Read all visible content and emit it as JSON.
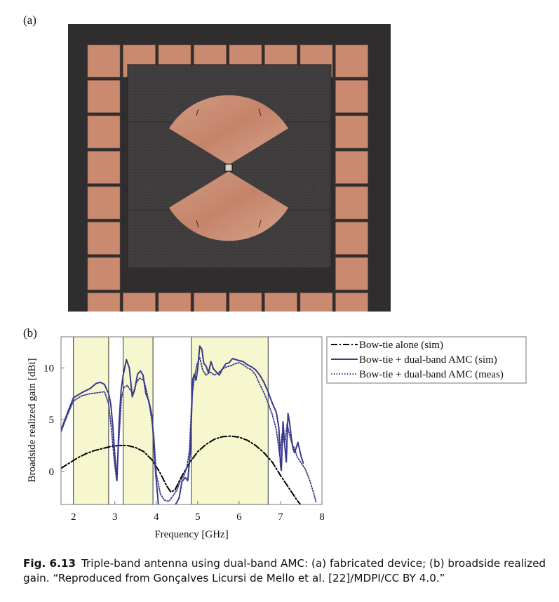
{
  "panel_a_label": "(a)",
  "panel_b_label": "(b)",
  "caption": {
    "number": "Fig. 6.13",
    "text": "Triple-band antenna using dual-band AMC: (a) fabricated device; (b) broadside realized gain. “Reproduced from Gonçalves Licursi de Mello et al. [22]/MDPI/CC BY 4.0.”"
  },
  "photo": {
    "substrate_color": "#2e2c2c",
    "patch_color": "#c98a70",
    "antenna_layer_color": "#3a3838"
  },
  "chart_data": {
    "type": "line",
    "xlabel": "Frequency [GHz]",
    "ylabel": "Broadside realized gain [dBi]",
    "xlim": [
      1.7,
      8.0
    ],
    "ylim": [
      -3.2,
      13.0
    ],
    "xticks": [
      2,
      3,
      4,
      5,
      6,
      7,
      8
    ],
    "yticks": [
      0,
      5,
      10
    ],
    "highlight_bands": [
      [
        2.0,
        2.85
      ],
      [
        3.2,
        3.92
      ],
      [
        4.85,
        6.7
      ]
    ],
    "highlight_color": "#f7f7cf",
    "legend_position": "right",
    "series": [
      {
        "name": "Bow-tie alone (sim)",
        "style": "dashdot",
        "color": "#000000",
        "x": [
          1.7,
          1.9,
          2.1,
          2.3,
          2.5,
          2.7,
          2.9,
          3.1,
          3.3,
          3.5,
          3.7,
          3.9,
          4.1,
          4.25,
          4.35,
          4.45,
          4.6,
          4.8,
          5.0,
          5.2,
          5.4,
          5.6,
          5.8,
          6.0,
          6.2,
          6.4,
          6.6,
          6.8,
          7.0,
          7.2,
          7.4,
          7.6
        ],
        "y": [
          0.3,
          0.8,
          1.3,
          1.7,
          2.0,
          2.2,
          2.4,
          2.5,
          2.5,
          2.3,
          1.9,
          1.1,
          -0.2,
          -1.4,
          -2.0,
          -1.8,
          -0.6,
          0.8,
          1.9,
          2.6,
          3.1,
          3.35,
          3.4,
          3.3,
          3.0,
          2.5,
          1.8,
          0.9,
          -0.4,
          -1.6,
          -2.8,
          -3.8
        ]
      },
      {
        "name": "Bow-tie + dual-band AMC (sim)",
        "style": "solid",
        "color": "#3a3a8c",
        "x": [
          1.7,
          1.85,
          2.0,
          2.2,
          2.4,
          2.55,
          2.65,
          2.75,
          2.85,
          2.9,
          2.95,
          3.0,
          3.05,
          3.1,
          3.15,
          3.2,
          3.28,
          3.35,
          3.42,
          3.48,
          3.55,
          3.62,
          3.68,
          3.75,
          3.82,
          3.9,
          3.97,
          4.05,
          4.15,
          4.25,
          4.35,
          4.45,
          4.55,
          4.62,
          4.7,
          4.76,
          4.82,
          4.88,
          4.92,
          4.96,
          5.0,
          5.05,
          5.1,
          5.15,
          5.2,
          5.26,
          5.32,
          5.38,
          5.45,
          5.52,
          5.6,
          5.68,
          5.76,
          5.84,
          5.92,
          6.0,
          6.1,
          6.2,
          6.3,
          6.4,
          6.5,
          6.6,
          6.7,
          6.8,
          6.9,
          6.96,
          7.0,
          7.02,
          7.06,
          7.1,
          7.14,
          7.18,
          7.22,
          7.26,
          7.3,
          7.34,
          7.38,
          7.42,
          7.46,
          7.5,
          7.55
        ],
        "y": [
          4.0,
          5.6,
          7.1,
          7.6,
          8.0,
          8.5,
          8.6,
          8.4,
          7.5,
          6.5,
          4.4,
          1.5,
          -0.9,
          4.6,
          7.8,
          9.3,
          10.8,
          10.0,
          7.2,
          7.9,
          9.4,
          9.7,
          9.3,
          7.5,
          6.8,
          5.3,
          0.6,
          -3.2,
          -3.4,
          -3.6,
          -3.7,
          -3.3,
          -2.6,
          -1.0,
          -0.6,
          -0.9,
          1.8,
          8.9,
          9.4,
          8.8,
          9.9,
          12.1,
          11.8,
          10.4,
          10.2,
          9.5,
          10.6,
          9.9,
          9.6,
          9.3,
          9.9,
          10.4,
          10.5,
          10.9,
          10.8,
          10.7,
          10.6,
          10.3,
          10.1,
          9.8,
          9.3,
          8.6,
          7.7,
          6.6,
          5.7,
          4.2,
          0.5,
          0.1,
          4.8,
          2.6,
          0.9,
          5.6,
          4.7,
          3.3,
          2.2,
          1.8,
          2.3,
          2.8,
          2.1,
          1.4,
          0.8
        ]
      },
      {
        "name": "Bow-tie + dual-band AMC (meas)",
        "style": "dotted",
        "color": "#3a3a8c",
        "x": [
          1.7,
          1.85,
          2.0,
          2.2,
          2.4,
          2.6,
          2.75,
          2.85,
          2.92,
          2.98,
          3.04,
          3.1,
          3.16,
          3.22,
          3.3,
          3.38,
          3.45,
          3.52,
          3.6,
          3.7,
          3.78,
          3.86,
          3.94,
          4.0,
          4.1,
          4.2,
          4.3,
          4.4,
          4.5,
          4.58,
          4.66,
          4.74,
          4.8,
          4.86,
          4.92,
          4.98,
          5.05,
          5.12,
          5.2,
          5.3,
          5.4,
          5.5,
          5.6,
          5.7,
          5.8,
          5.9,
          6.0,
          6.1,
          6.2,
          6.3,
          6.4,
          6.5,
          6.6,
          6.7,
          6.8,
          6.9,
          6.98,
          7.04,
          7.1,
          7.16,
          7.22,
          7.28,
          7.34,
          7.4,
          7.5,
          7.6,
          7.7,
          7.8,
          7.86
        ],
        "y": [
          3.8,
          5.4,
          6.8,
          7.3,
          7.5,
          7.6,
          7.7,
          6.5,
          4.0,
          1.2,
          -0.8,
          3.2,
          7.1,
          8.1,
          8.3,
          7.8,
          7.6,
          8.6,
          9.0,
          8.8,
          7.5,
          5.8,
          3.5,
          -0.2,
          -2.2,
          -2.8,
          -2.9,
          -2.4,
          -1.8,
          -0.9,
          -0.5,
          0.4,
          2.0,
          7.2,
          9.0,
          10.3,
          11.0,
          9.8,
          9.3,
          9.6,
          9.3,
          9.5,
          9.9,
          10.1,
          10.2,
          10.4,
          10.5,
          10.3,
          10.0,
          9.8,
          9.3,
          8.4,
          7.6,
          6.6,
          5.5,
          4.0,
          1.5,
          3.7,
          2.6,
          4.6,
          3.5,
          2.6,
          2.2,
          1.4,
          0.8,
          0.2,
          -0.8,
          -2.1,
          -3.0
        ]
      }
    ]
  }
}
